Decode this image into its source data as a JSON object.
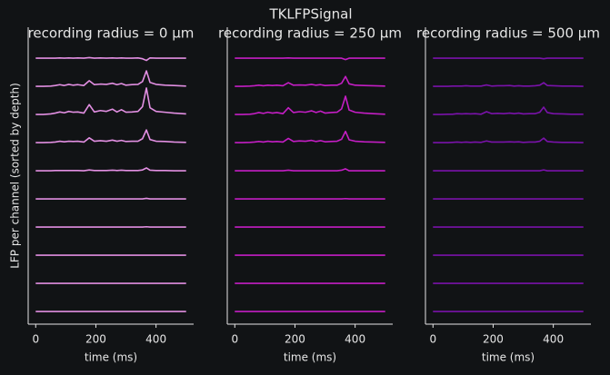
{
  "title": "TKLFPSignal",
  "chart_data": [
    {
      "type": "line",
      "title": "recording radius = 0 μm",
      "xlabel": "time (ms)",
      "ylabel": "LFP per channel (sorted by depth)",
      "color": "#e28fe2",
      "xlim": [
        -25,
        525
      ],
      "ylim": [
        -9.45,
        1.1
      ],
      "xticks": [
        0,
        200,
        400
      ],
      "x": [
        0,
        25,
        50,
        65,
        80,
        95,
        110,
        125,
        140,
        160,
        178,
        195,
        215,
        235,
        255,
        270,
        285,
        300,
        320,
        340,
        355,
        368,
        380,
        400,
        430,
        460,
        500
      ],
      "series": [
        {
          "values": [
            0,
            0,
            0,
            0,
            0.01,
            0,
            0.01,
            0,
            0.01,
            0,
            0.02,
            0,
            0.01,
            0,
            0.01,
            0,
            0.01,
            0,
            0,
            0.01,
            -0.02,
            -0.08,
            0.01,
            0,
            0,
            0,
            0
          ]
        },
        {
          "values": [
            -1,
            -1,
            -0.99,
            -0.97,
            -0.94,
            -0.97,
            -0.93,
            -0.96,
            -0.94,
            -0.97,
            -0.8,
            -0.94,
            -0.92,
            -0.93,
            -0.89,
            -0.94,
            -0.9,
            -0.96,
            -0.94,
            -0.93,
            -0.83,
            -0.45,
            -0.86,
            -0.93,
            -0.96,
            -0.97,
            -0.99
          ]
        },
        {
          "values": [
            -2,
            -2,
            -1.98,
            -1.95,
            -1.91,
            -1.94,
            -1.89,
            -1.92,
            -1.91,
            -1.95,
            -1.65,
            -1.91,
            -1.86,
            -1.89,
            -1.81,
            -1.91,
            -1.83,
            -1.92,
            -1.91,
            -1.89,
            -1.72,
            -1.06,
            -1.76,
            -1.89,
            -1.92,
            -1.95,
            -1.98
          ]
        },
        {
          "values": [
            -3,
            -3,
            -2.99,
            -2.98,
            -2.95,
            -2.97,
            -2.95,
            -2.96,
            -2.95,
            -2.98,
            -2.83,
            -2.95,
            -2.93,
            -2.95,
            -2.91,
            -2.95,
            -2.92,
            -2.96,
            -2.95,
            -2.95,
            -2.86,
            -2.55,
            -2.89,
            -2.95,
            -2.96,
            -2.98,
            -2.99
          ]
        },
        {
          "values": [
            -4,
            -4,
            -4,
            -3.99,
            -3.99,
            -3.99,
            -3.99,
            -3.99,
            -3.99,
            -4,
            -3.97,
            -3.99,
            -3.99,
            -3.99,
            -3.98,
            -3.99,
            -3.98,
            -3.99,
            -3.99,
            -3.99,
            -3.97,
            -3.9,
            -3.98,
            -3.99,
            -3.99,
            -4,
            -4
          ]
        },
        {
          "values": [
            -5,
            -5,
            -5,
            -5,
            -5,
            -5,
            -5,
            -5,
            -5,
            -5,
            -5,
            -5,
            -5,
            -5,
            -5,
            -5,
            -5,
            -5,
            -5,
            -5,
            -5,
            -4.98,
            -5,
            -5,
            -5,
            -5,
            -5
          ]
        },
        {
          "values": [
            -6,
            -6,
            -6,
            -6,
            -6,
            -6,
            -6,
            -6,
            -6,
            -6,
            -6,
            -6,
            -6,
            -6,
            -6,
            -6,
            -6,
            -6,
            -6,
            -6,
            -6,
            -5.99,
            -6,
            -6,
            -6,
            -6,
            -6
          ]
        },
        {
          "values": [
            -7,
            -7,
            -7,
            -7,
            -7,
            -7,
            -7,
            -7,
            -7,
            -7,
            -7,
            -7,
            -7,
            -7,
            -7,
            -7,
            -7,
            -7,
            -7,
            -7,
            -7,
            -7,
            -7,
            -7,
            -7,
            -7,
            -7
          ]
        },
        {
          "values": [
            -8,
            -8,
            -8,
            -8,
            -8,
            -8,
            -8,
            -8,
            -8,
            -8,
            -8,
            -8,
            -8,
            -8,
            -8,
            -8,
            -8,
            -8,
            -8,
            -8,
            -8,
            -8,
            -8,
            -8,
            -8,
            -8,
            -8
          ]
        },
        {
          "values": [
            -9,
            -9,
            -9,
            -9,
            -9,
            -9,
            -9,
            -9,
            -9,
            -9,
            -9,
            -9,
            -9,
            -9,
            -9,
            -9,
            -9,
            -9,
            -9,
            -9,
            -9,
            -9,
            -9,
            -9,
            -9,
            -9,
            -9
          ]
        }
      ]
    },
    {
      "type": "line",
      "title": "recording radius = 250 μm",
      "xlabel": "time (ms)",
      "color": "#c41ec4",
      "xlim": [
        -25,
        525
      ],
      "ylim": [
        -9.45,
        1.1
      ],
      "xticks": [
        0,
        200,
        400
      ],
      "x": [
        0,
        25,
        50,
        65,
        80,
        95,
        110,
        125,
        140,
        160,
        178,
        195,
        215,
        235,
        255,
        270,
        285,
        300,
        320,
        340,
        355,
        368,
        380,
        400,
        430,
        460,
        500
      ],
      "series": [
        {
          "values": [
            0,
            0,
            0,
            0,
            0,
            0,
            0,
            0,
            0,
            0,
            0.01,
            0,
            0,
            0,
            0,
            0,
            0,
            0,
            0,
            0,
            0,
            -0.05,
            0,
            0,
            0,
            0,
            0
          ]
        },
        {
          "values": [
            -1,
            -1,
            -0.99,
            -0.98,
            -0.96,
            -0.98,
            -0.96,
            -0.97,
            -0.96,
            -0.98,
            -0.87,
            -0.96,
            -0.95,
            -0.96,
            -0.93,
            -0.96,
            -0.94,
            -0.97,
            -0.96,
            -0.96,
            -0.89,
            -0.65,
            -0.91,
            -0.96,
            -0.97,
            -0.98,
            -0.99
          ]
        },
        {
          "values": [
            -2,
            -2,
            -1.99,
            -1.97,
            -1.93,
            -1.96,
            -1.92,
            -1.95,
            -1.93,
            -1.97,
            -1.76,
            -1.93,
            -1.9,
            -1.92,
            -1.87,
            -1.93,
            -1.88,
            -1.95,
            -1.93,
            -1.92,
            -1.8,
            -1.35,
            -1.84,
            -1.92,
            -1.95,
            -1.97,
            -1.99
          ]
        },
        {
          "values": [
            -3,
            -3,
            -2.99,
            -2.98,
            -2.96,
            -2.98,
            -2.95,
            -2.97,
            -2.96,
            -2.98,
            -2.85,
            -2.96,
            -2.94,
            -2.95,
            -2.92,
            -2.96,
            -2.93,
            -2.97,
            -2.96,
            -2.95,
            -2.88,
            -2.6,
            -2.9,
            -2.95,
            -2.97,
            -2.98,
            -2.99
          ]
        },
        {
          "values": [
            -4,
            -4,
            -4,
            -4,
            -4,
            -4,
            -4,
            -4,
            -4,
            -4,
            -3.98,
            -4,
            -4,
            -4,
            -4,
            -4,
            -4,
            -4,
            -4,
            -4,
            -3.98,
            -3.93,
            -4,
            -4,
            -4,
            -4,
            -4
          ]
        },
        {
          "values": [
            -5,
            -5,
            -5,
            -5,
            -5,
            -5,
            -5,
            -5,
            -5,
            -5,
            -5,
            -5,
            -5,
            -5,
            -5,
            -5,
            -5,
            -5,
            -5,
            -5,
            -5,
            -4.99,
            -5,
            -5,
            -5,
            -5,
            -5
          ]
        },
        {
          "values": [
            -6,
            -6,
            -6,
            -6,
            -6,
            -6,
            -6,
            -6,
            -6,
            -6,
            -6,
            -6,
            -6,
            -6,
            -6,
            -6,
            -6,
            -6,
            -6,
            -6,
            -6,
            -6,
            -6,
            -6,
            -6,
            -6,
            -6
          ]
        },
        {
          "values": [
            -7,
            -7,
            -7,
            -7,
            -7,
            -7,
            -7,
            -7,
            -7,
            -7,
            -7,
            -7,
            -7,
            -7,
            -7,
            -7,
            -7,
            -7,
            -7,
            -7,
            -7,
            -7,
            -7,
            -7,
            -7,
            -7,
            -7
          ]
        },
        {
          "values": [
            -8,
            -8,
            -8,
            -8,
            -8,
            -8,
            -8,
            -8,
            -8,
            -8,
            -8,
            -8,
            -8,
            -8,
            -8,
            -8,
            -8,
            -8,
            -8,
            -8,
            -8,
            -8,
            -8,
            -8,
            -8,
            -8,
            -8
          ]
        },
        {
          "values": [
            -9,
            -9,
            -9,
            -9,
            -9,
            -9,
            -9,
            -9,
            -9,
            -9,
            -9,
            -9,
            -9,
            -9,
            -9,
            -9,
            -9,
            -9,
            -9,
            -9,
            -9,
            -9,
            -9,
            -9,
            -9,
            -9,
            -9
          ]
        }
      ]
    },
    {
      "type": "line",
      "title": "recording radius = 500 μm",
      "xlabel": "time (ms)",
      "color": "#7a12aa",
      "xlim": [
        -25,
        525
      ],
      "ylim": [
        -9.45,
        1.1
      ],
      "xticks": [
        0,
        200,
        400
      ],
      "x": [
        0,
        25,
        50,
        65,
        80,
        95,
        110,
        125,
        140,
        160,
        178,
        195,
        215,
        235,
        255,
        270,
        285,
        300,
        320,
        340,
        355,
        368,
        380,
        400,
        430,
        460,
        500
      ],
      "series": [
        {
          "values": [
            0,
            0,
            0,
            0,
            0,
            0,
            0,
            0,
            0,
            0,
            0,
            0,
            0,
            0,
            0,
            0,
            0,
            0,
            0,
            0,
            0,
            -0.02,
            0,
            0,
            0,
            0,
            0
          ]
        },
        {
          "values": [
            -1,
            -1,
            -1,
            -0.99,
            -0.99,
            -0.99,
            -0.98,
            -0.99,
            -0.99,
            -0.99,
            -0.95,
            -0.99,
            -0.98,
            -0.98,
            -0.97,
            -0.99,
            -0.98,
            -0.99,
            -0.99,
            -0.98,
            -0.96,
            -0.87,
            -0.97,
            -0.98,
            -0.99,
            -0.99,
            -1
          ]
        },
        {
          "values": [
            -2,
            -2,
            -1.99,
            -1.99,
            -1.97,
            -1.98,
            -1.97,
            -1.98,
            -1.97,
            -1.99,
            -1.9,
            -1.97,
            -1.96,
            -1.97,
            -1.95,
            -1.97,
            -1.95,
            -1.98,
            -1.97,
            -1.97,
            -1.92,
            -1.74,
            -1.93,
            -1.97,
            -1.98,
            -1.99,
            -1.99
          ]
        },
        {
          "values": [
            -3,
            -3,
            -3,
            -2.99,
            -2.98,
            -2.99,
            -2.98,
            -2.99,
            -2.98,
            -2.99,
            -2.94,
            -2.98,
            -2.98,
            -2.98,
            -2.97,
            -2.98,
            -2.97,
            -2.99,
            -2.98,
            -2.98,
            -2.95,
            -2.84,
            -2.96,
            -2.98,
            -2.99,
            -2.99,
            -3
          ]
        },
        {
          "values": [
            -4,
            -4,
            -4,
            -4,
            -4,
            -4,
            -4,
            -4,
            -4,
            -4,
            -4,
            -4,
            -4,
            -4,
            -4,
            -4,
            -4,
            -4,
            -4,
            -4,
            -4,
            -3.97,
            -4,
            -4,
            -4,
            -4,
            -4
          ]
        },
        {
          "values": [
            -5,
            -5,
            -5,
            -5,
            -5,
            -5,
            -5,
            -5,
            -5,
            -5,
            -5,
            -5,
            -5,
            -5,
            -5,
            -5,
            -5,
            -5,
            -5,
            -5,
            -5,
            -5,
            -5,
            -5,
            -5,
            -5,
            -5
          ]
        },
        {
          "values": [
            -6,
            -6,
            -6,
            -6,
            -6,
            -6,
            -6,
            -6,
            -6,
            -6,
            -6,
            -6,
            -6,
            -6,
            -6,
            -6,
            -6,
            -6,
            -6,
            -6,
            -6,
            -6,
            -6,
            -6,
            -6,
            -6,
            -6
          ]
        },
        {
          "values": [
            -7,
            -7,
            -7,
            -7,
            -7,
            -7,
            -7,
            -7,
            -7,
            -7,
            -7,
            -7,
            -7,
            -7,
            -7,
            -7,
            -7,
            -7,
            -7,
            -7,
            -7,
            -7,
            -7,
            -7,
            -7,
            -7,
            -7
          ]
        },
        {
          "values": [
            -8,
            -8,
            -8,
            -8,
            -8,
            -8,
            -8,
            -8,
            -8,
            -8,
            -8,
            -8,
            -8,
            -8,
            -8,
            -8,
            -8,
            -8,
            -8,
            -8,
            -8,
            -8,
            -8,
            -8,
            -8,
            -8,
            -8
          ]
        },
        {
          "values": [
            -9,
            -9,
            -9,
            -9,
            -9,
            -9,
            -9,
            -9,
            -9,
            -9,
            -9,
            -9,
            -9,
            -9,
            -9,
            -9,
            -9,
            -9,
            -9,
            -9,
            -9,
            -9,
            -9,
            -9,
            -9,
            -9,
            -9
          ]
        }
      ]
    }
  ]
}
